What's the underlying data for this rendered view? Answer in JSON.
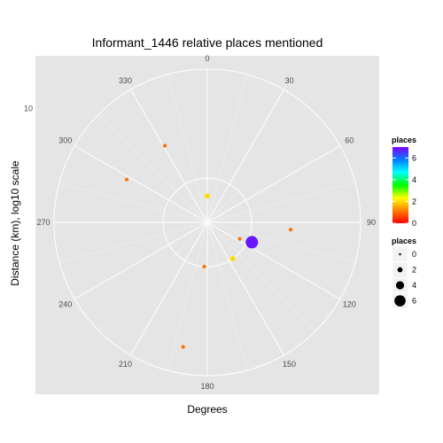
{
  "chart_data": {
    "type": "scatter",
    "coord": "polar",
    "title": "Informant_1446 relative places mentioned",
    "xlabel": "Degrees",
    "ylabel": "Distance (km), log10 scale",
    "angle_ticks": [
      "0",
      "30",
      "60",
      "90",
      "120",
      "150",
      "180",
      "210",
      "240",
      "270",
      "300",
      "330"
    ],
    "radial_tick": "10",
    "points": [
      {
        "angle": 0,
        "distance": 1,
        "places": 2
      },
      {
        "angle": 114,
        "distance": 1.8,
        "places": 6.8
      },
      {
        "angle": 145,
        "distance": 1.6,
        "places": 2
      },
      {
        "angle": 117,
        "distance": 1.3,
        "places": 1
      },
      {
        "angle": 95,
        "distance": 4.5,
        "places": 1
      },
      {
        "angle": 184,
        "distance": 1.6,
        "places": 1
      },
      {
        "angle": 191,
        "distance": 14,
        "places": 1
      },
      {
        "angle": 331,
        "distance": 5,
        "places": 1
      },
      {
        "angle": 298,
        "distance": 5.5,
        "places": 1
      }
    ],
    "legend_color": {
      "title": "places",
      "ticks": [
        "0",
        "2",
        "4",
        "6"
      ],
      "max": 7
    },
    "legend_size": {
      "title": "places",
      "values": [
        "0",
        "2",
        "4",
        "6"
      ]
    },
    "grid": true,
    "legend_position": "right"
  }
}
